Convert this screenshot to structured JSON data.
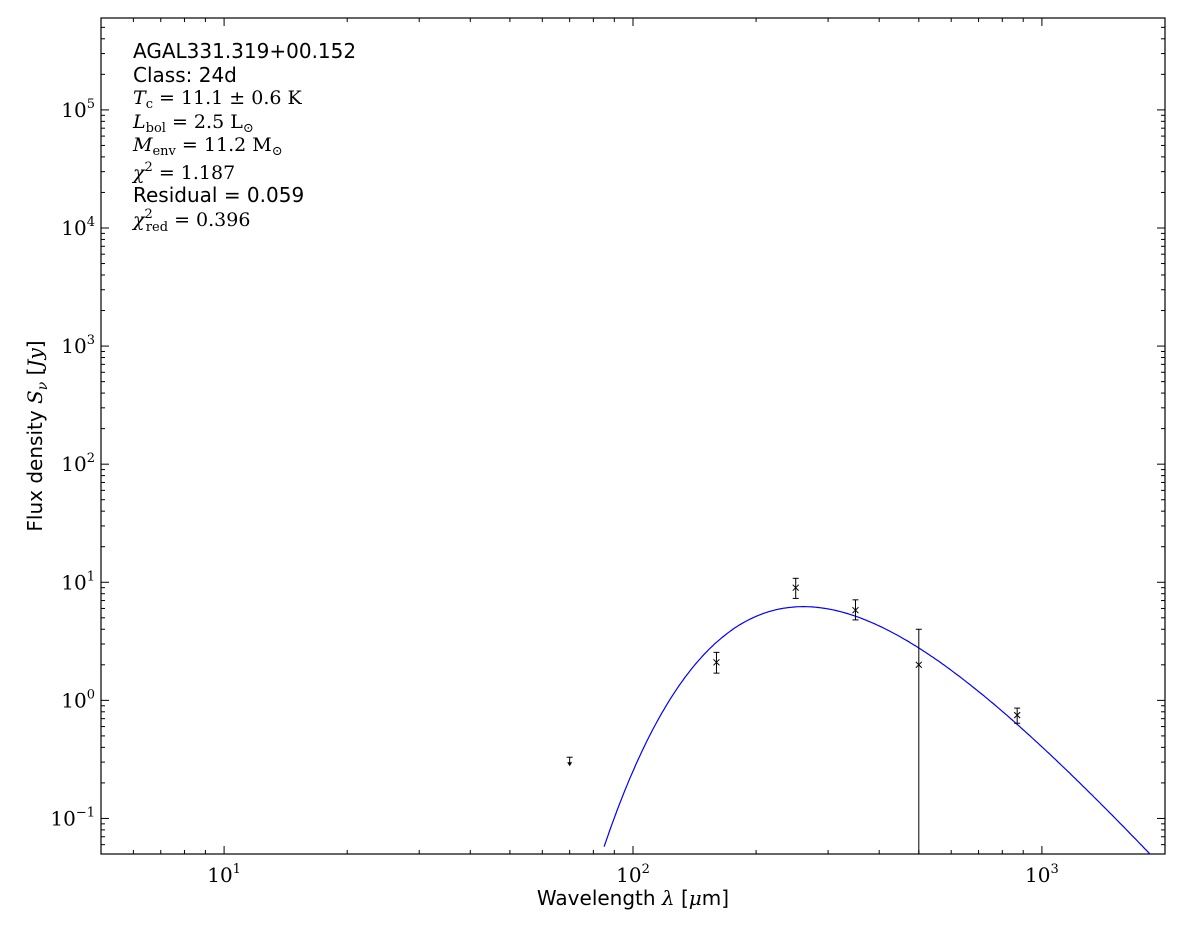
{
  "chart_data": {
    "type": "scatter",
    "xlabel": "Wavelength λ [μm]",
    "ylabel": "Flux density S_ν [Jy]",
    "x_scale": "log",
    "y_scale": "log",
    "xlim": [
      5,
      2000
    ],
    "ylim": [
      0.05,
      600000
    ],
    "x_ticks": [
      {
        "value": 10,
        "base": "10",
        "exp": "1"
      },
      {
        "value": 100,
        "base": "10",
        "exp": "2"
      },
      {
        "value": 1000,
        "base": "10",
        "exp": "3"
      }
    ],
    "y_ticks": [
      {
        "value": 0.1,
        "base": "10",
        "exp": "−1"
      },
      {
        "value": 1,
        "base": "10",
        "exp": "0"
      },
      {
        "value": 10,
        "base": "10",
        "exp": "1"
      },
      {
        "value": 100,
        "base": "10",
        "exp": "2"
      },
      {
        "value": 1000,
        "base": "10",
        "exp": "3"
      },
      {
        "value": 10000,
        "base": "10",
        "exp": "4"
      },
      {
        "value": 100000,
        "base": "10",
        "exp": "5"
      }
    ],
    "grid": false,
    "series": [
      {
        "kind": "measurements",
        "marker": "x",
        "color": "#000000",
        "points": [
          {
            "x": 160,
            "y": 2.1,
            "err_low": 1.7,
            "err_high": 2.55
          },
          {
            "x": 250,
            "y": 9.0,
            "err_low": 7.3,
            "err_high": 10.8
          },
          {
            "x": 350,
            "y": 5.8,
            "err_low": 4.8,
            "err_high": 7.1
          },
          {
            "x": 500,
            "y": 2.0,
            "err_low": 0.05,
            "err_high": 4.0
          },
          {
            "x": 870,
            "y": 0.75,
            "err_low": 0.64,
            "err_high": 0.86
          }
        ]
      },
      {
        "kind": "upper_limit",
        "marker": "arrow-down",
        "color": "#000000",
        "points": [
          {
            "x": 70,
            "y": 0.33
          }
        ]
      },
      {
        "kind": "model",
        "style": "line",
        "color": "#0000ff",
        "temperature_K": 11.1,
        "peak_wavelength_um": 270,
        "peak_flux_Jy": 6.2,
        "x_range": [
          85,
          2000
        ]
      }
    ],
    "annotation": {
      "source": "AGAL331.319+00.152",
      "class_line": "Class: 24d",
      "tc_line": "T_c = 11.1 ± 0.6 K",
      "lbol_line": "L_bol = 2.5 L_⊙",
      "menv_line": "M_env = 11.2 M_⊙",
      "chi2_line": "χ² = 1.187",
      "residual_line": "Residual = 0.059",
      "chi2red_line": "χ²_red = 0.396"
    }
  }
}
